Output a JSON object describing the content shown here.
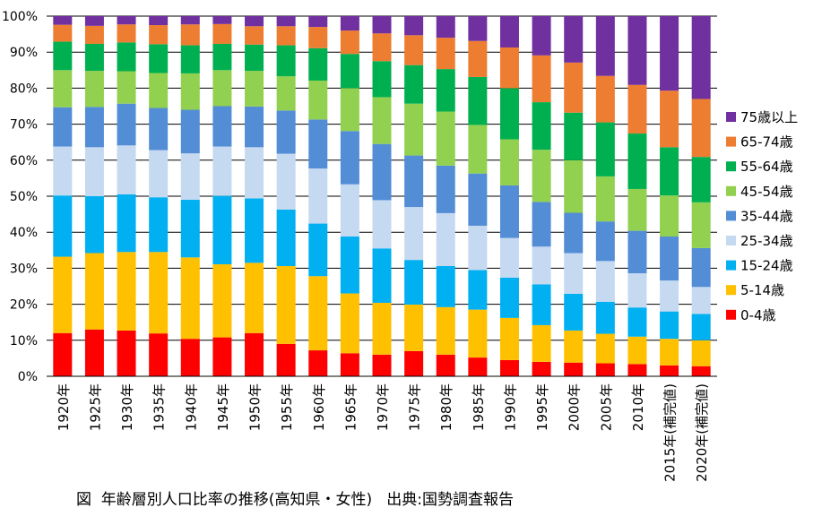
{
  "chart_data": {
    "type": "bar",
    "stacked": true,
    "percent": true,
    "categories": [
      "1920年",
      "1925年",
      "1930年",
      "1935年",
      "1940年",
      "1945年",
      "1950年",
      "1955年",
      "1960年",
      "1965年",
      "1970年",
      "1975年",
      "1980年",
      "1985年",
      "1990年",
      "1995年",
      "2000年",
      "2005年",
      "2010年",
      "2015年(補完値)",
      "2020年(補完値)"
    ],
    "yticks": [
      "0%",
      "10%",
      "20%",
      "30%",
      "40%",
      "50%",
      "60%",
      "70%",
      "80%",
      "90%",
      "100%"
    ],
    "ylim": [
      0,
      100
    ],
    "grid": true,
    "legend_position": "right",
    "series": [
      {
        "name": "0-4歳",
        "color": "#ff0000",
        "values": [
          12.0,
          13.0,
          12.7,
          11.9,
          10.4,
          10.8,
          12.0,
          9.0,
          7.2,
          6.4,
          6.0,
          7.0,
          6.0,
          5.2,
          4.5,
          4.0,
          3.8,
          3.6,
          3.4,
          3.0,
          2.8
        ]
      },
      {
        "name": "5-14歳",
        "color": "#ffc000",
        "values": [
          21.2,
          21.2,
          21.8,
          22.6,
          22.6,
          20.3,
          19.5,
          21.6,
          20.6,
          16.6,
          14.4,
          12.9,
          13.2,
          13.3,
          11.7,
          10.2,
          8.9,
          8.2,
          7.6,
          7.4,
          7.2
        ]
      },
      {
        "name": "15-24歳",
        "color": "#00b0f0",
        "values": [
          17.0,
          15.8,
          16.0,
          15.2,
          16.0,
          19.0,
          17.9,
          15.7,
          14.6,
          15.8,
          15.1,
          12.4,
          11.4,
          11.0,
          11.2,
          11.3,
          10.2,
          8.9,
          8.1,
          7.6,
          7.3
        ]
      },
      {
        "name": "25-34歳",
        "color": "#c5d9f1",
        "values": [
          13.6,
          13.6,
          13.6,
          13.1,
          12.9,
          13.7,
          14.2,
          15.5,
          15.3,
          14.5,
          13.4,
          14.7,
          14.7,
          12.3,
          11.0,
          10.5,
          11.3,
          11.3,
          9.5,
          8.6,
          7.5
        ]
      },
      {
        "name": "35-44歳",
        "color": "#538dd5",
        "values": [
          10.9,
          11.2,
          11.6,
          11.7,
          12.1,
          11.2,
          11.3,
          12.0,
          13.6,
          14.8,
          15.6,
          14.3,
          13.2,
          14.5,
          14.6,
          12.4,
          11.2,
          11.0,
          11.8,
          12.2,
          10.8
        ]
      },
      {
        "name": "45-54歳",
        "color": "#92d050",
        "values": [
          10.3,
          10.0,
          9.0,
          9.7,
          10.1,
          10.0,
          9.9,
          9.5,
          10.8,
          11.9,
          13.0,
          14.4,
          15.0,
          13.5,
          12.8,
          14.5,
          14.6,
          12.5,
          11.6,
          11.4,
          12.7
        ]
      },
      {
        "name": "55-64歳",
        "color": "#00b050",
        "values": [
          7.9,
          7.5,
          8.0,
          8.0,
          7.8,
          7.3,
          7.3,
          8.6,
          9.0,
          9.5,
          10.0,
          10.7,
          11.8,
          13.3,
          14.2,
          13.2,
          13.2,
          15.0,
          15.4,
          13.4,
          12.6
        ]
      },
      {
        "name": "65-74歳",
        "color": "#ed7d31",
        "values": [
          4.7,
          5.0,
          5.0,
          5.3,
          5.8,
          5.5,
          5.1,
          5.3,
          5.9,
          6.5,
          7.7,
          8.3,
          8.7,
          10.0,
          11.3,
          13.0,
          13.9,
          12.9,
          13.5,
          15.7,
          16.1
        ]
      },
      {
        "name": "75歳以上",
        "color": "#7030a0",
        "values": [
          2.4,
          2.7,
          2.3,
          2.5,
          2.3,
          2.2,
          2.8,
          2.8,
          3.0,
          4.0,
          4.8,
          5.3,
          6.0,
          6.9,
          8.7,
          10.9,
          12.9,
          16.6,
          19.1,
          20.7,
          23.0
        ]
      }
    ]
  },
  "caption": "図  年齢層別人口比率の推移(高知県・女性)   出典:国勢調査報告"
}
